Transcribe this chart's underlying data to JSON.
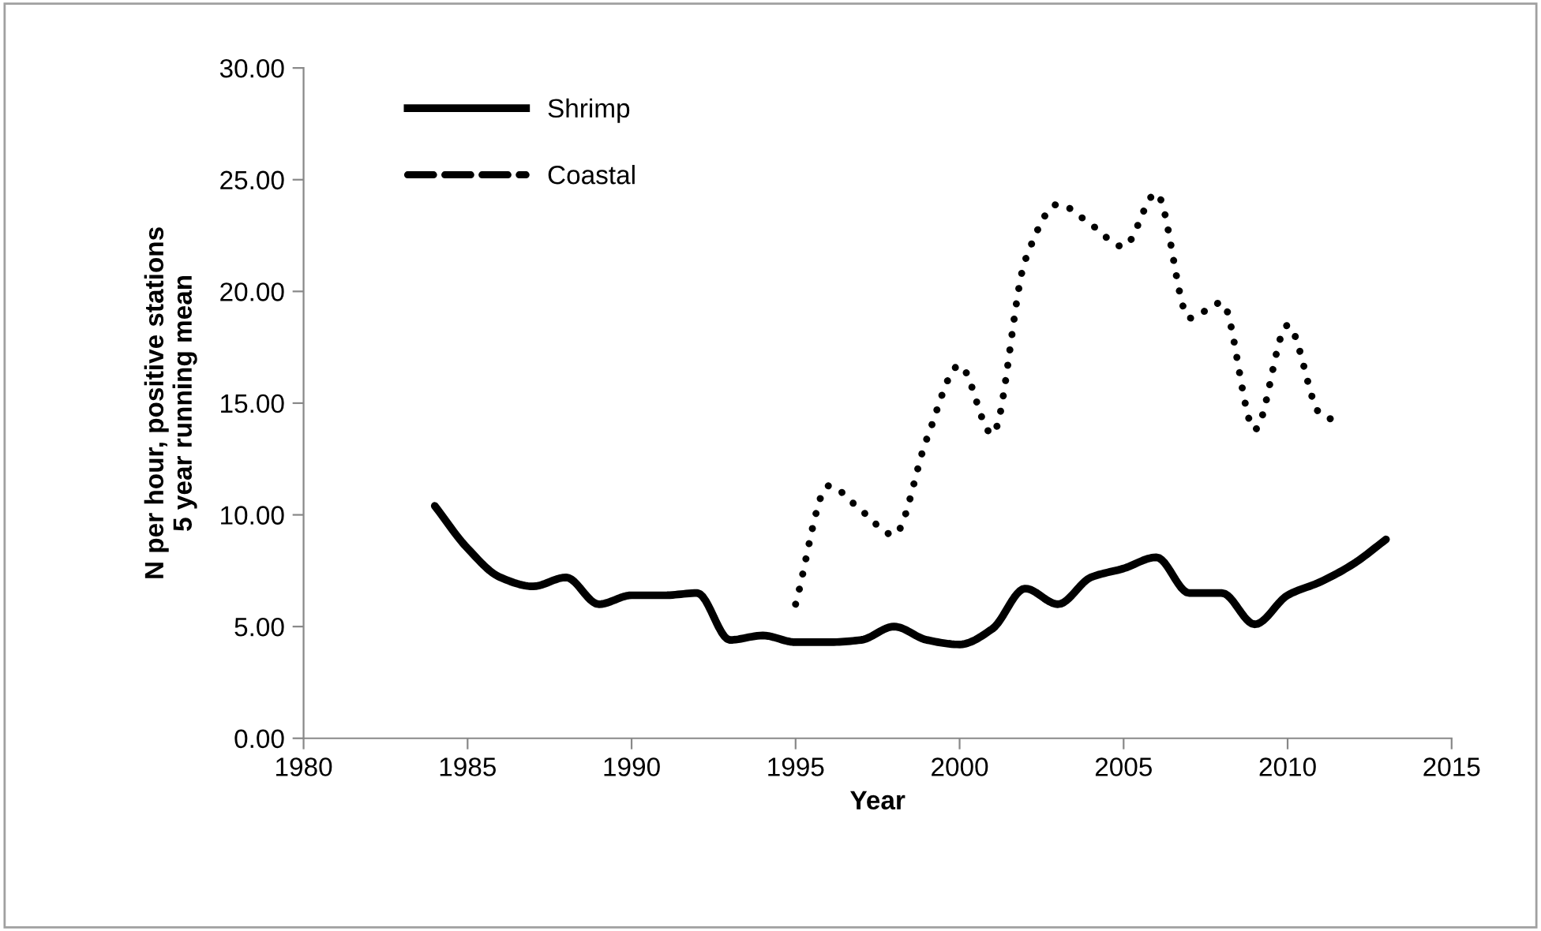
{
  "chart_data": {
    "type": "line",
    "xlabel": "Year",
    "ylabel": "N per hour, positive stations\n5 year running mean",
    "xlim": [
      1980,
      2015
    ],
    "xticks": [
      1980,
      1985,
      1990,
      1995,
      2000,
      2005,
      2010,
      2015
    ],
    "ylim": [
      0,
      30
    ],
    "yticks": [
      {
        "value": 0,
        "label": "0.00"
      },
      {
        "value": 5,
        "label": "5.00"
      },
      {
        "value": 10,
        "label": "10.00"
      },
      {
        "value": 15,
        "label": "15.00"
      },
      {
        "value": 20,
        "label": "20.00"
      },
      {
        "value": 25,
        "label": "25.00"
      },
      {
        "value": 30,
        "label": "30.00"
      }
    ],
    "grid": false,
    "legend": "top left",
    "marker": "none",
    "series": [
      {
        "name": "Shrimp",
        "color": "#000000",
        "line_style": "solid",
        "x": [
          1984,
          1985,
          1986,
          1987,
          1988,
          1989,
          1990,
          1991,
          1992,
          1993,
          1994,
          1995,
          1996,
          1997,
          1998,
          1999,
          2000,
          2001,
          2002,
          2003,
          2004,
          2005,
          2006,
          2007,
          2008,
          2009,
          2010,
          2011,
          2012,
          2013
        ],
        "values": [
          10.4,
          8.5,
          7.2,
          6.8,
          7.2,
          6.0,
          6.4,
          6.4,
          6.5,
          4.4,
          4.6,
          4.3,
          4.3,
          4.4,
          5.0,
          4.4,
          4.2,
          4.9,
          6.7,
          6.0,
          7.2,
          7.6,
          8.1,
          6.5,
          6.5,
          5.1,
          6.4,
          7.0,
          7.8,
          8.9
        ]
      },
      {
        "name": "Coastal",
        "color": "#000000",
        "line_style": "dotted",
        "x": [
          1995,
          1996,
          1997,
          1998,
          1999,
          2000,
          2001,
          2002,
          2003,
          2004,
          2005,
          2006,
          2007,
          2008,
          2009,
          2010,
          2011,
          2011.5
        ],
        "values": [
          6.0,
          11.3,
          10.2,
          9.1,
          13.4,
          16.7,
          13.6,
          21.4,
          23.9,
          23.0,
          22.0,
          24.4,
          18.8,
          19.5,
          13.8,
          18.5,
          14.5,
          14.2
        ]
      }
    ]
  }
}
